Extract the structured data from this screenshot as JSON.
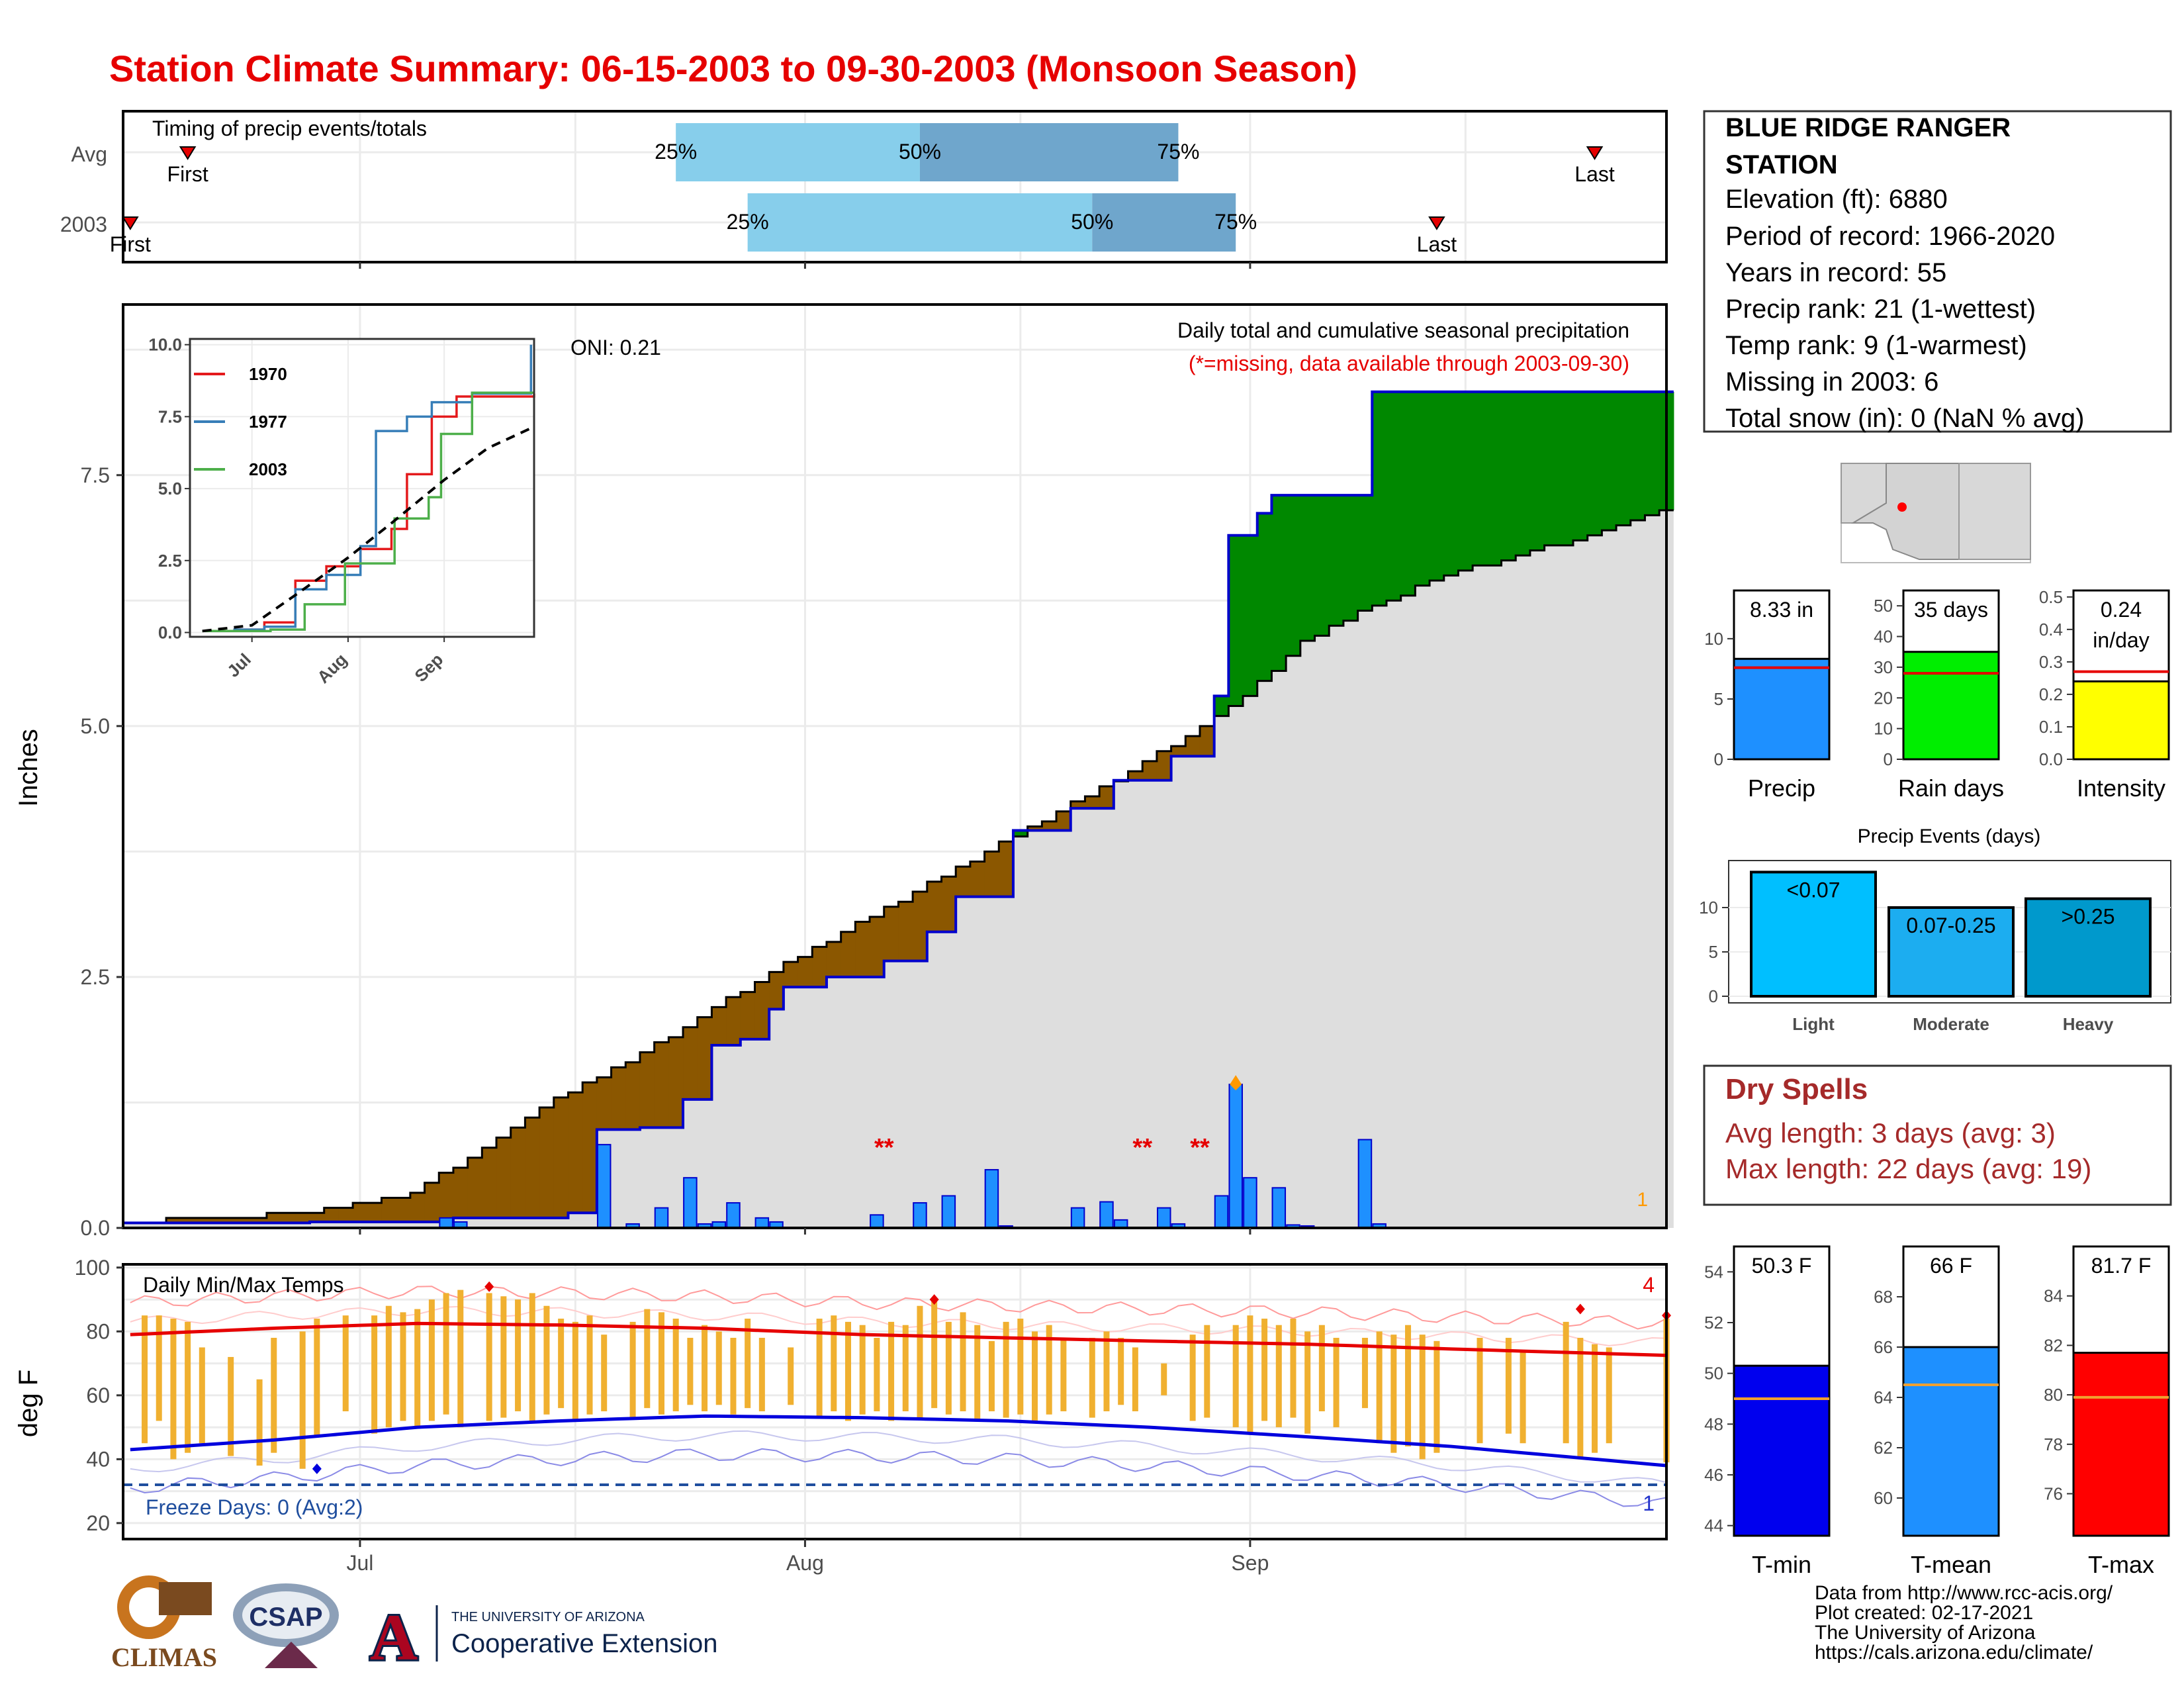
{
  "title": "Station Climate Summary: 06-15-2003 to 09-30-2003 (Monsoon Season)",
  "timing": {
    "title": "Timing of precip events/totals",
    "rows": [
      {
        "label": "Avg",
        "first": "06-19",
        "p25": "07-23",
        "p50": "08-09",
        "p75": "08-27",
        "last": "09-25"
      },
      {
        "label": "2003",
        "first": "06-15",
        "p25": "07-28",
        "p50": "08-21",
        "p75": "08-31",
        "last": "09-14"
      }
    ],
    "first_label": "First",
    "last_label": "Last",
    "p25_label": "25%",
    "p50_label": "50%",
    "p75_label": "75%"
  },
  "station": {
    "name_line1": "BLUE RIDGE RANGER",
    "name_line2": "STATION",
    "elevation": "Elevation (ft): 6880",
    "period": "Period of record: 1966-2020",
    "years": "Years in record: 55",
    "precip_rank": "Precip rank: 21 (1-wettest)",
    "temp_rank": "Temp rank: 9 (1-warmest)",
    "missing": "Missing in 2003: 6",
    "snow": "Total snow (in): 0 (NaN % avg)"
  },
  "precip_panel": {
    "ylabel": "Inches",
    "yticks": [
      "0.0",
      "2.5",
      "5.0",
      "7.5"
    ],
    "subtitle1": "Daily total and cumulative seasonal precipitation",
    "subtitle2": "(*=missing, data available through 2003-09-30)",
    "oni": "ONI: 0.21",
    "missing_marks": [
      "**",
      "**",
      "**"
    ],
    "corner_count": "1",
    "colors": {
      "cumulative_2003": "#0000cc",
      "normal": "#000000",
      "below": "#8b5700",
      "above": "#008800",
      "daily_bar": "#1e90ff"
    }
  },
  "inset": {
    "yticks": [
      "0.0",
      "2.5",
      "5.0",
      "7.5",
      "10.0"
    ],
    "xticks": [
      "Jul",
      "Aug",
      "Sep"
    ],
    "legend": [
      {
        "name": "1970",
        "color": "#e41a1c"
      },
      {
        "name": "1977",
        "color": "#377eb8"
      },
      {
        "name": "2003",
        "color": "#4daf4a"
      }
    ]
  },
  "temp_panel": {
    "ylabel": "deg F",
    "yticks": [
      "20",
      "40",
      "60",
      "80",
      "100"
    ],
    "title": "Daily Min/Max Temps",
    "freeze": "Freeze Days: 0 (Avg:2)",
    "count_hi": "4",
    "count_lo": "1"
  },
  "xaxis": {
    "ticks": [
      "Jul",
      "Aug",
      "Sep"
    ]
  },
  "gauges_precip": [
    {
      "name": "Precip",
      "value_label": "8.33 in",
      "value": 8.33,
      "avg": 7.6,
      "ymax": 14,
      "ticks": [
        "0",
        "5",
        "10"
      ],
      "color": "#1e90ff"
    },
    {
      "name": "Rain days",
      "value_label": "35 days",
      "value": 35,
      "avg": 28,
      "ymax": 55,
      "ticks": [
        "0",
        "10",
        "20",
        "30",
        "40",
        "50"
      ],
      "color": "#00ee00"
    },
    {
      "name": "Intensity",
      "value_label": "0.24",
      "value_label2": "in/day",
      "value": 0.24,
      "avg": 0.27,
      "ymax": 0.52,
      "ticks": [
        "0.0",
        "0.1",
        "0.2",
        "0.3",
        "0.4",
        "0.5"
      ],
      "color": "#ffff00"
    }
  ],
  "events": {
    "title": "Precip Events (days)",
    "ticks": [
      "0",
      "5",
      "10"
    ],
    "bars": [
      {
        "name": "Light",
        "label": "<0.07",
        "value": 14,
        "color": "#00bfff"
      },
      {
        "name": "Moderate",
        "label": "0.07-0.25",
        "value": 10,
        "color": "#1cadf0"
      },
      {
        "name": "Heavy",
        "label": ">0.25",
        "value": 11,
        "color": "#0099cc"
      }
    ]
  },
  "dry_spells": {
    "title": "Dry Spells",
    "avg": "Avg length: 3 days (avg: 3)",
    "max": "Max length: 22 days (avg: 19)"
  },
  "gauges_temp": [
    {
      "name": "T-min",
      "value_label": "50.3 F",
      "value": 50.3,
      "avg": 49.0,
      "ymin": 43.6,
      "ymax": 55,
      "ticks": [
        "44",
        "46",
        "48",
        "50",
        "52",
        "54"
      ],
      "color": "#0000ee"
    },
    {
      "name": "T-mean",
      "value_label": "66 F",
      "value": 66.0,
      "avg": 64.5,
      "ymin": 58.5,
      "ymax": 70,
      "ticks": [
        "60",
        "62",
        "64",
        "66",
        "68"
      ],
      "color": "#1e90ff"
    },
    {
      "name": "T-max",
      "value_label": "81.7 F",
      "value": 81.7,
      "avg": 79.9,
      "ymin": 74.3,
      "ymax": 86,
      "ticks": [
        "76",
        "78",
        "80",
        "82",
        "84"
      ],
      "color": "#ff0000"
    }
  ],
  "footer": {
    "line1": "Data from http://www.rcc-acis.org/",
    "line2": "Plot created: 02-17-2021",
    "line3": "The University of Arizona",
    "line4": "https://cals.arizona.edu/climate/",
    "logo_climas": "CLIMAS",
    "logo_csap": "CSAP",
    "logo_ua_small": "THE UNIVERSITY OF ARIZONA",
    "logo_ua_big": "Cooperative Extension"
  },
  "chart_data": {
    "type": "area",
    "title": "Daily total and cumulative seasonal precipitation",
    "ylabel": "Inches",
    "ylim": [
      0,
      9.2
    ],
    "x_start": "06-15",
    "x_end": "09-30",
    "cumulative_2003_points": [
      [
        "06-15",
        0.05
      ],
      [
        "06-28",
        0.06
      ],
      [
        "07-07",
        0.06
      ],
      [
        "07-08",
        0.1
      ],
      [
        "07-16",
        0.15
      ],
      [
        "07-18",
        0.98
      ],
      [
        "07-21",
        1.0
      ],
      [
        "07-24",
        1.28
      ],
      [
        "07-26",
        1.82
      ],
      [
        "07-28",
        1.88
      ],
      [
        "07-30",
        2.18
      ],
      [
        "07-31",
        2.4
      ],
      [
        "08-03",
        2.5
      ],
      [
        "08-07",
        2.66
      ],
      [
        "08-10",
        2.95
      ],
      [
        "08-12",
        3.3
      ],
      [
        "08-16",
        3.96
      ],
      [
        "08-20",
        4.18
      ],
      [
        "08-23",
        4.46
      ],
      [
        "08-27",
        4.7
      ],
      [
        "08-30",
        5.3
      ],
      [
        "08-31",
        6.9
      ],
      [
        "09-02",
        7.12
      ],
      [
        "09-03",
        7.3
      ],
      [
        "09-10",
        8.33
      ],
      [
        "09-30",
        8.33
      ]
    ],
    "normal_points": [
      [
        "06-15",
        0.05
      ],
      [
        "06-20",
        0.1
      ],
      [
        "06-25",
        0.13
      ],
      [
        "06-30",
        0.2
      ],
      [
        "07-05",
        0.35
      ],
      [
        "07-10",
        0.8
      ],
      [
        "07-15",
        1.3
      ],
      [
        "07-20",
        1.65
      ],
      [
        "07-25",
        2.1
      ],
      [
        "07-30",
        2.55
      ],
      [
        "08-04",
        2.95
      ],
      [
        "08-09",
        3.35
      ],
      [
        "08-14",
        3.75
      ],
      [
        "08-19",
        4.15
      ],
      [
        "08-24",
        4.55
      ],
      [
        "08-29",
        5.0
      ],
      [
        "09-01",
        5.3
      ],
      [
        "09-05",
        5.85
      ],
      [
        "09-10",
        6.2
      ],
      [
        "09-15",
        6.5
      ],
      [
        "09-20",
        6.7
      ],
      [
        "09-25",
        6.9
      ],
      [
        "09-30",
        7.15
      ]
    ],
    "daily_precip": [
      [
        "07-07",
        0.1
      ],
      [
        "07-08",
        0.06
      ],
      [
        "07-18",
        0.83
      ],
      [
        "07-20",
        0.04
      ],
      [
        "07-22",
        0.2
      ],
      [
        "07-24",
        0.5
      ],
      [
        "07-25",
        0.04
      ],
      [
        "07-26",
        0.06
      ],
      [
        "07-27",
        0.25
      ],
      [
        "07-29",
        0.1
      ],
      [
        "07-30",
        0.06
      ],
      [
        "08-06",
        0.13
      ],
      [
        "08-09",
        0.25
      ],
      [
        "08-11",
        0.32
      ],
      [
        "08-14",
        0.58
      ],
      [
        "08-15",
        0.02
      ],
      [
        "08-20",
        0.2
      ],
      [
        "08-22",
        0.26
      ],
      [
        "08-23",
        0.08
      ],
      [
        "08-26",
        0.2
      ],
      [
        "08-27",
        0.04
      ],
      [
        "08-30",
        0.32
      ],
      [
        "08-31",
        1.43
      ],
      [
        "09-01",
        0.5
      ],
      [
        "09-03",
        0.4
      ],
      [
        "09-04",
        0.03
      ],
      [
        "09-05",
        0.02
      ],
      [
        "09-09",
        0.88
      ],
      [
        "09-10",
        0.04
      ]
    ],
    "missing_days": [
      "08-06",
      "08-07",
      "08-24",
      "08-25",
      "08-28",
      "08-29"
    ],
    "inset_series": [
      {
        "name": "1970",
        "points": [
          [
            "06-25",
            0.1
          ],
          [
            "07-05",
            0.35
          ],
          [
            "07-15",
            1.8
          ],
          [
            "07-25",
            2.3
          ],
          [
            "08-05",
            2.9
          ],
          [
            "08-15",
            3.6
          ],
          [
            "08-20",
            5.5
          ],
          [
            "08-28",
            7.5
          ],
          [
            "09-05",
            8.2
          ],
          [
            "09-30",
            8.3
          ]
        ]
      },
      {
        "name": "1977",
        "points": [
          [
            "06-25",
            0.1
          ],
          [
            "07-05",
            0.2
          ],
          [
            "07-15",
            1.5
          ],
          [
            "07-25",
            2.0
          ],
          [
            "08-05",
            3.0
          ],
          [
            "08-10",
            7.0
          ],
          [
            "08-20",
            7.5
          ],
          [
            "08-28",
            8.0
          ],
          [
            "09-10",
            8.3
          ],
          [
            "09-29",
            10.0
          ]
        ]
      },
      {
        "name": "2003",
        "points": [
          [
            "06-15",
            0.05
          ],
          [
            "07-07",
            0.1
          ],
          [
            "07-18",
            0.98
          ],
          [
            "07-31",
            2.4
          ],
          [
            "08-16",
            3.96
          ],
          [
            "08-27",
            4.7
          ],
          [
            "08-31",
            6.9
          ],
          [
            "09-10",
            8.33
          ],
          [
            "09-30",
            8.33
          ]
        ]
      },
      {
        "name": "avg",
        "points": [
          [
            "06-15",
            0.05
          ],
          [
            "07-01",
            0.25
          ],
          [
            "07-15",
            1.3
          ],
          [
            "08-01",
            2.6
          ],
          [
            "08-15",
            3.8
          ],
          [
            "09-01",
            5.3
          ],
          [
            "09-15",
            6.4
          ],
          [
            "09-30",
            7.15
          ]
        ]
      }
    ],
    "temp_ylim": [
      15,
      101
    ],
    "tmax_normal": [
      [
        "06-15",
        79
      ],
      [
        "06-25",
        81
      ],
      [
        "07-05",
        82.5
      ],
      [
        "07-15",
        82
      ],
      [
        "07-25",
        81
      ],
      [
        "08-05",
        79
      ],
      [
        "08-15",
        78
      ],
      [
        "08-25",
        77
      ],
      [
        "09-05",
        76
      ],
      [
        "09-15",
        74.5
      ],
      [
        "09-30",
        72.5
      ]
    ],
    "tmin_normal": [
      [
        "06-15",
        43
      ],
      [
        "06-25",
        46
      ],
      [
        "07-05",
        50
      ],
      [
        "07-15",
        52
      ],
      [
        "07-25",
        53.5
      ],
      [
        "08-05",
        53
      ],
      [
        "08-15",
        52
      ],
      [
        "08-25",
        50
      ],
      [
        "09-05",
        47
      ],
      [
        "09-15",
        44
      ],
      [
        "09-30",
        38
      ]
    ],
    "daily_temps": [
      [
        "06-16",
        45,
        85
      ],
      [
        "06-17",
        52,
        85
      ],
      [
        "06-18",
        40,
        84
      ],
      [
        "06-19",
        42,
        83
      ],
      [
        "06-20",
        45,
        75
      ],
      [
        "06-22",
        41,
        72
      ],
      [
        "06-24",
        38,
        65
      ],
      [
        "06-25",
        42,
        78
      ],
      [
        "06-27",
        37,
        80
      ],
      [
        "06-28",
        47,
        84
      ],
      [
        "06-30",
        55,
        85
      ],
      [
        "07-02",
        48,
        85
      ],
      [
        "07-03",
        50,
        88
      ],
      [
        "07-04",
        52,
        86
      ],
      [
        "07-05",
        50,
        87
      ],
      [
        "07-06",
        52,
        90
      ],
      [
        "07-07",
        54,
        92
      ],
      [
        "07-08",
        50,
        93
      ],
      [
        "07-10",
        52,
        92
      ],
      [
        "07-11",
        53,
        91
      ],
      [
        "07-12",
        55,
        90
      ],
      [
        "07-13",
        52,
        92
      ],
      [
        "07-14",
        54,
        88
      ],
      [
        "07-15",
        56,
        84
      ],
      [
        "07-16",
        52,
        83
      ],
      [
        "07-17",
        54,
        85
      ],
      [
        "07-18",
        55,
        79
      ],
      [
        "07-20",
        53,
        83
      ],
      [
        "07-21",
        56,
        87
      ],
      [
        "07-22",
        54,
        86
      ],
      [
        "07-23",
        55,
        84
      ],
      [
        "07-24",
        57,
        78
      ],
      [
        "07-25",
        55,
        82
      ],
      [
        "07-26",
        57,
        80
      ],
      [
        "07-27",
        54,
        78
      ],
      [
        "07-28",
        56,
        84
      ],
      [
        "07-29",
        55,
        78
      ],
      [
        "07-31",
        57,
        75
      ],
      [
        "08-02",
        53,
        84
      ],
      [
        "08-03",
        55,
        85
      ],
      [
        "08-04",
        52,
        83
      ],
      [
        "08-05",
        54,
        82
      ],
      [
        "08-06",
        55,
        78
      ],
      [
        "08-07",
        52,
        83
      ],
      [
        "08-08",
        55,
        82
      ],
      [
        "08-09",
        53,
        88
      ],
      [
        "08-10",
        56,
        90
      ],
      [
        "08-11",
        54,
        83
      ],
      [
        "08-12",
        55,
        86
      ],
      [
        "08-13",
        52,
        82
      ],
      [
        "08-14",
        55,
        77
      ],
      [
        "08-15",
        53,
        83
      ],
      [
        "08-16",
        54,
        84
      ],
      [
        "08-17",
        52,
        80
      ],
      [
        "08-18",
        54,
        82
      ],
      [
        "08-19",
        55,
        78
      ],
      [
        "08-21",
        53,
        78
      ],
      [
        "08-22",
        55,
        80
      ],
      [
        "08-23",
        57,
        78
      ],
      [
        "08-24",
        55,
        75
      ],
      [
        "08-26",
        60,
        70
      ],
      [
        "08-28",
        52,
        79
      ],
      [
        "08-29",
        53,
        82
      ],
      [
        "08-31",
        50,
        82
      ],
      [
        "09-01",
        48,
        85
      ],
      [
        "09-02",
        52,
        84
      ],
      [
        "09-03",
        50,
        82
      ],
      [
        "09-04",
        53,
        84
      ],
      [
        "09-05",
        48,
        80
      ],
      [
        "09-06",
        55,
        82
      ],
      [
        "09-07",
        50,
        78
      ],
      [
        "09-09",
        56,
        78
      ],
      [
        "09-10",
        45,
        80
      ],
      [
        "09-11",
        42,
        79
      ],
      [
        "09-12",
        44,
        82
      ],
      [
        "09-13",
        40,
        79
      ],
      [
        "09-14",
        42,
        77
      ],
      [
        "09-17",
        45,
        78
      ],
      [
        "09-19",
        48,
        78
      ],
      [
        "09-20",
        45,
        74
      ],
      [
        "09-23",
        45,
        83
      ],
      [
        "09-24",
        40,
        78
      ],
      [
        "09-25",
        42,
        76
      ],
      [
        "09-26",
        45,
        75
      ],
      [
        "09-30",
        39,
        84
      ]
    ]
  }
}
